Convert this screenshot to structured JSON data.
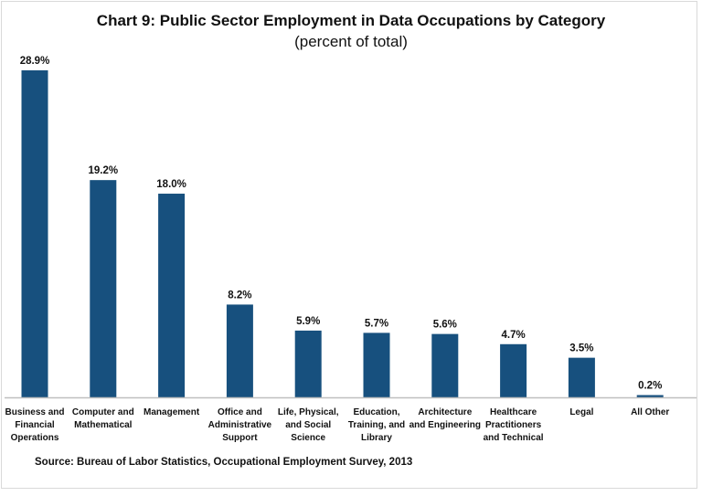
{
  "chart_data": {
    "type": "bar",
    "title": "Chart 9: Public Sector Employment in Data Occupations by Category",
    "subtitle": "(percent of total)",
    "categories": [
      [
        "Business and",
        "Financial",
        "Operations"
      ],
      [
        "Computer and",
        "Mathematical"
      ],
      [
        "Management"
      ],
      [
        "Office and",
        "Administrative",
        "Support"
      ],
      [
        "Life, Physical,",
        "and Social",
        "Science"
      ],
      [
        "Education,",
        "Training, and",
        "Library"
      ],
      [
        "Architecture",
        "and Engineering"
      ],
      [
        "Healthcare",
        "Practitioners",
        "and Technical"
      ],
      [
        "Legal"
      ],
      [
        "All Other"
      ]
    ],
    "values": [
      28.9,
      19.2,
      18.0,
      8.2,
      5.9,
      5.7,
      5.6,
      4.7,
      3.5,
      0.2
    ],
    "data_labels": [
      "28.9%",
      "19.2%",
      "18.0%",
      "8.2%",
      "5.9%",
      "5.7%",
      "5.6%",
      "4.7%",
      "3.5%",
      "0.2%"
    ],
    "xlabel": "",
    "ylabel": "",
    "ylim": [
      0,
      28.9
    ],
    "grid": false,
    "bar_color": "#17507e",
    "source": "Source: Bureau of Labor Statistics, Occupational Employment Survey, 2013"
  }
}
